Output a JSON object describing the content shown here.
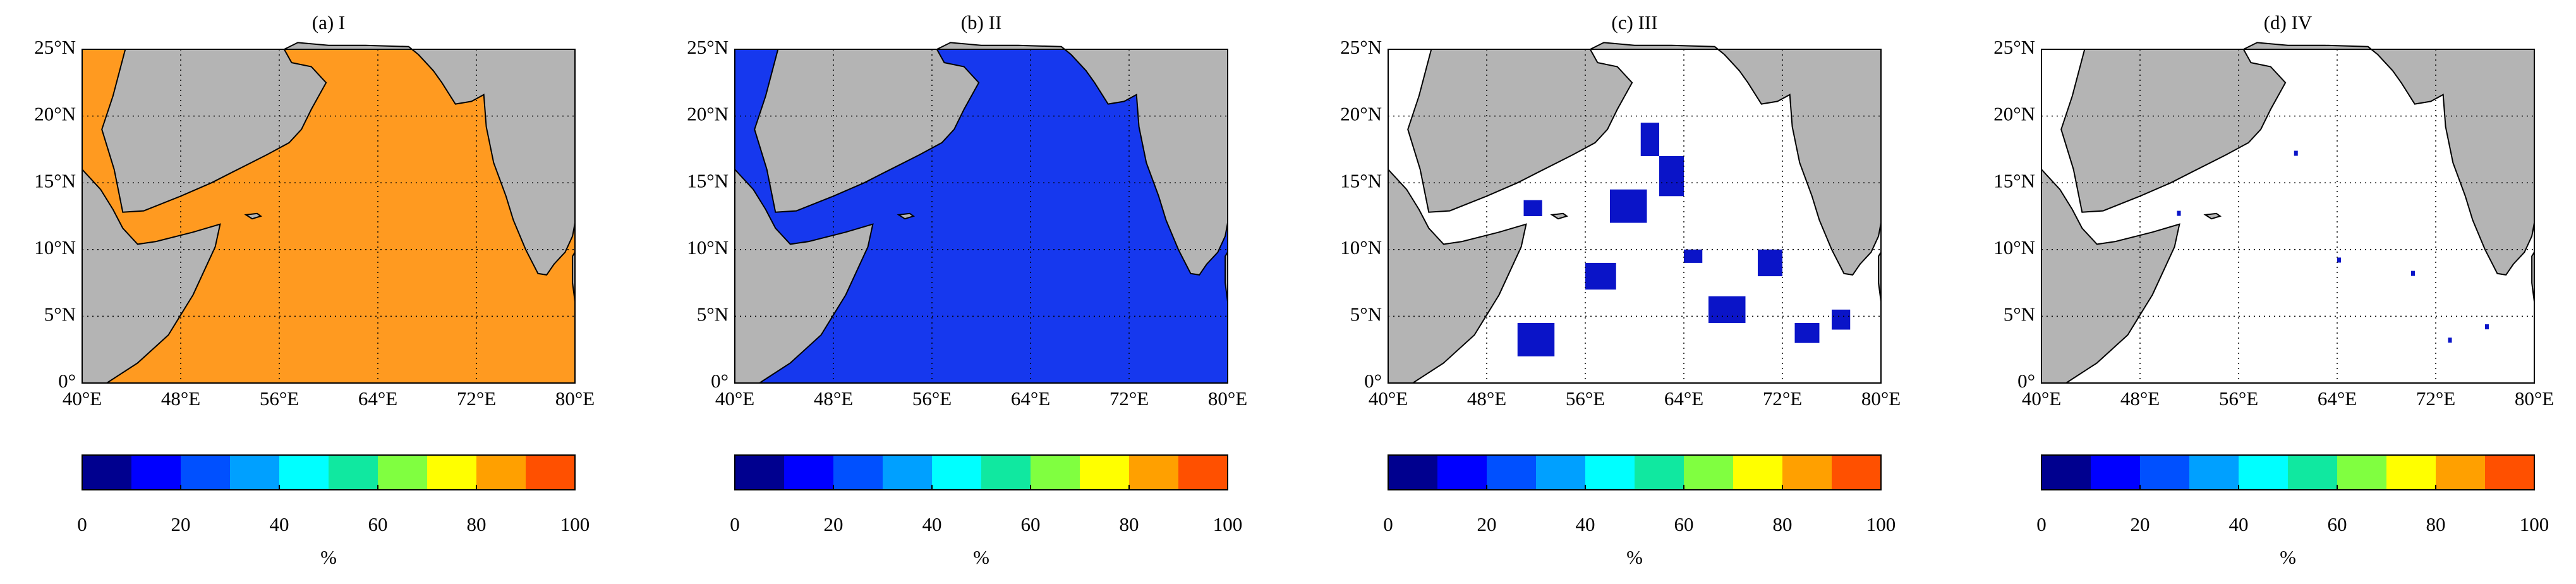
{
  "panels": [
    {
      "title": "(a) I",
      "ocean_color": "#ff9a20"
    },
    {
      "title": "(b) II",
      "ocean_color": "#1638ee"
    },
    {
      "title": "(c) III",
      "ocean_color": "#ffffff"
    },
    {
      "title": "(d) IV",
      "ocean_color": "#ffffff"
    }
  ],
  "xlim": [
    40,
    80
  ],
  "ylim": [
    0,
    25
  ],
  "xticks": [
    {
      "value": 40,
      "label": "40°E"
    },
    {
      "value": 48,
      "label": "48°E"
    },
    {
      "value": 56,
      "label": "56°E"
    },
    {
      "value": 64,
      "label": "64°E"
    },
    {
      "value": 72,
      "label": "72°E"
    },
    {
      "value": 80,
      "label": "80°E"
    }
  ],
  "yticks": [
    {
      "value": 0,
      "label": "0°"
    },
    {
      "value": 5,
      "label": "5°N"
    },
    {
      "value": 10,
      "label": "10°N"
    },
    {
      "value": 15,
      "label": "15°N"
    },
    {
      "value": 20,
      "label": "20°N"
    },
    {
      "value": 25,
      "label": "25°N"
    }
  ],
  "grid": true,
  "colorbar": {
    "lim": [
      0,
      100
    ],
    "ticks": [
      0,
      20,
      40,
      60,
      80,
      100
    ],
    "label": "%",
    "colors": [
      "#00008f",
      "#0000ff",
      "#0050ff",
      "#00a0ff",
      "#00ffff",
      "#10e8a0",
      "#80ff40",
      "#ffff00",
      "#ffa000",
      "#ff5000"
    ]
  }
}
